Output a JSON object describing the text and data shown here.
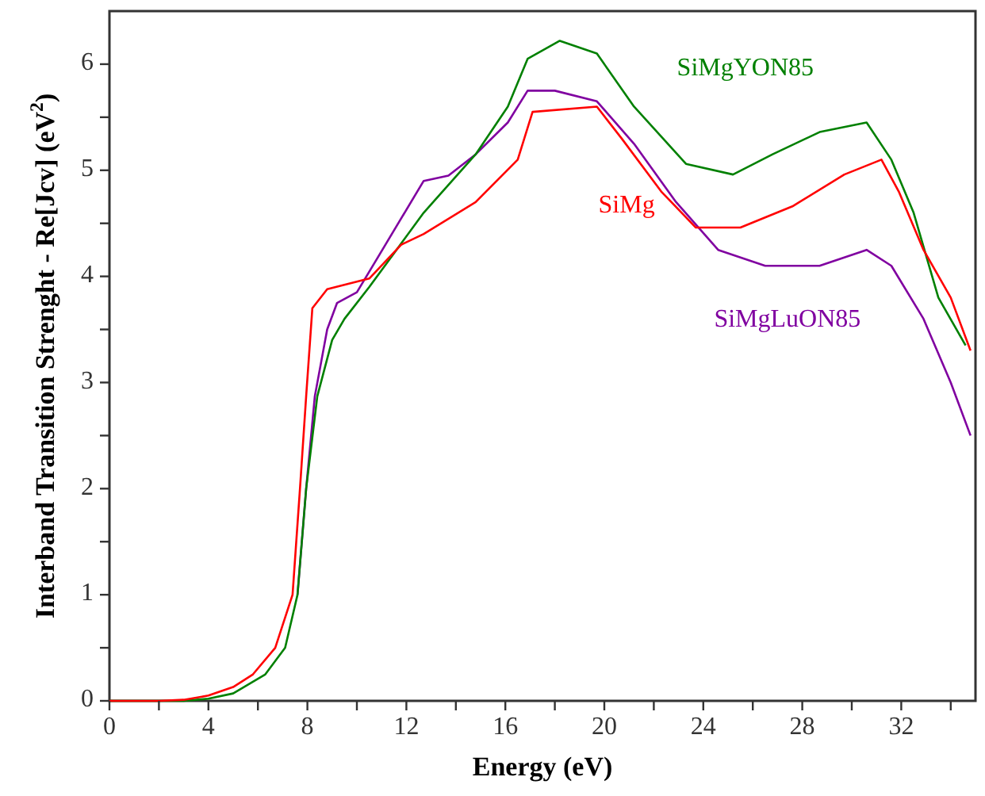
{
  "chart_data": {
    "type": "line",
    "xlabel": "Energy (eV)",
    "ylabel": "Interband Transition Strenght - Re[Jcv] (eV$^{2}$)",
    "xlim": [
      0,
      35
    ],
    "ylim": [
      0,
      6.5
    ],
    "xticks": [
      0,
      {
        "value": 2,
        "label": null
      },
      4,
      {
        "value": 6,
        "label": null
      },
      8,
      {
        "value": 10,
        "label": null
      },
      12,
      {
        "value": 14,
        "label": null
      },
      16,
      {
        "value": 18,
        "label": null
      },
      20,
      {
        "value": 22,
        "label": null
      },
      24,
      {
        "value": 26,
        "label": null
      },
      28,
      {
        "value": 30,
        "label": null
      },
      32,
      {
        "value": 34,
        "label": null
      }
    ],
    "yticks": [
      0,
      {
        "value": 0.5,
        "label": null
      },
      1,
      {
        "value": 1.5,
        "label": null
      },
      2,
      {
        "value": 2.5,
        "label": null
      },
      3,
      {
        "value": 3.5,
        "label": null
      },
      4,
      {
        "value": 4.5,
        "label": null
      },
      5,
      {
        "value": 5.5,
        "label": null
      },
      6
    ],
    "grid": false,
    "legend": false,
    "marker": "none",
    "line_style": "solid",
    "series": [
      {
        "name": "SiMgLuON85",
        "color": "#8000a0",
        "x": [
          7.6,
          7.95,
          8.3,
          8.8,
          9.2,
          10,
          10.9,
          12.7,
          13.7,
          14.8,
          16.1,
          16.9,
          18,
          19.7,
          21.2,
          22.9,
          24.6,
          26.5,
          28.7,
          30.6,
          31.6,
          32.9,
          34,
          34.8
        ],
        "values": [
          1,
          2,
          2.87,
          3.5,
          3.75,
          3.85,
          4.2,
          4.9,
          4.95,
          5.15,
          5.45,
          5.75,
          5.75,
          5.65,
          5.25,
          4.7,
          4.25,
          4.1,
          4.1,
          4.25,
          4.1,
          3.6,
          3,
          2.5
        ]
      },
      {
        "name": "SiMgYON85",
        "color": "#008000",
        "x": [
          0,
          3,
          4,
          5,
          6.3,
          7.1,
          7.6,
          7.95,
          8.4,
          9,
          9.5,
          10.5,
          11.6,
          12.7,
          14.8,
          16.1,
          16.9,
          18.2,
          19.7,
          21.2,
          23.3,
          25.2,
          26.8,
          28.7,
          30.6,
          31.6,
          32.5,
          33.5,
          34.6
        ],
        "values": [
          0,
          0,
          0.02,
          0.07,
          0.25,
          0.5,
          1,
          2,
          2.87,
          3.4,
          3.6,
          3.9,
          4.25,
          4.6,
          5.15,
          5.6,
          6.05,
          6.22,
          6.1,
          5.6,
          5.06,
          4.96,
          5.15,
          5.36,
          5.45,
          5.1,
          4.6,
          3.8,
          3.35
        ]
      },
      {
        "name": "SiMg",
        "color": "#ff0000",
        "x": [
          0,
          2,
          3,
          4,
          5,
          5.8,
          6.7,
          7.4,
          7.7,
          7.95,
          8.2,
          8.8,
          10.5,
          11.8,
          12.7,
          14.8,
          16.5,
          17.1,
          19.7,
          20.7,
          22.3,
          23.7,
          25.5,
          27.6,
          29.7,
          31.2,
          31.9,
          32.9,
          34,
          34.8
        ],
        "values": [
          0,
          0,
          0.01,
          0.05,
          0.13,
          0.25,
          0.5,
          1,
          2,
          2.87,
          3.7,
          3.88,
          3.98,
          4.3,
          4.4,
          4.7,
          5.1,
          5.55,
          5.6,
          5.3,
          4.8,
          4.46,
          4.46,
          4.66,
          4.96,
          5.1,
          4.8,
          4.25,
          3.8,
          3.3
        ]
      }
    ]
  }
}
